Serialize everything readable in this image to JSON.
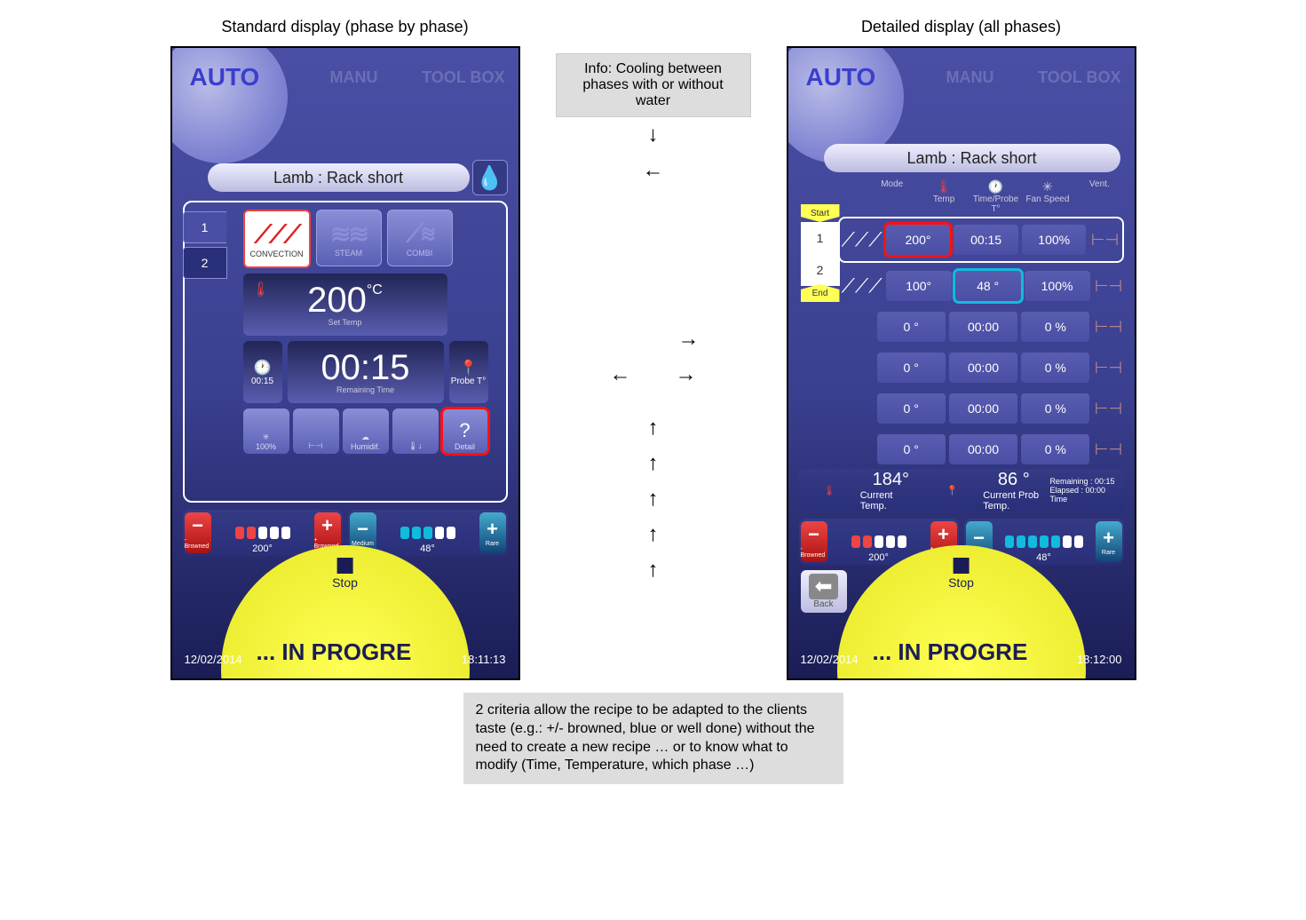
{
  "captions": {
    "standard": "Standard display (phase by phase)",
    "detailed": "Detailed display (all phases)"
  },
  "tabs": {
    "auto": "AUTO",
    "manu": "MANU",
    "toolbox": "TOOL BOX"
  },
  "recipe": "Lamb : Rack short",
  "standard": {
    "phase_tabs": [
      "1",
      "2"
    ],
    "modes": {
      "convection": "CONVECTION",
      "steam": "STEAM",
      "combi": "COMBI"
    },
    "set_temp_val": "200",
    "set_temp_unit": "°C",
    "set_temp_lbl": "Set Temp",
    "time_small": "00:15",
    "time_val": "00:15",
    "time_lbl": "Remaining Time",
    "probe_lbl": "Probe T°",
    "small_btns": {
      "fan": "100%",
      "vent": "",
      "humid": "Humidif.",
      "heat": "",
      "detail": "Detail"
    }
  },
  "detailed": {
    "start": "Start",
    "end": "End",
    "headers": {
      "mode": "Mode",
      "temp": "Temp",
      "time": "Time/Probe T°",
      "fan": "Fan Speed",
      "vent": "Vent."
    },
    "rows": [
      {
        "n": "1",
        "mode": "⟋⟋⟋",
        "temp": "200°",
        "time": "00:15",
        "fan": "100%",
        "hl_temp": "red"
      },
      {
        "n": "2",
        "mode": "⟋⟋⟋",
        "temp": "100°",
        "time": "48 °",
        "fan": "100%",
        "hl_time": "blue"
      },
      {
        "n": "",
        "mode": "",
        "temp": "0 °",
        "time": "00:00",
        "fan": "0 %"
      },
      {
        "n": "",
        "mode": "",
        "temp": "0 °",
        "time": "00:00",
        "fan": "0 %"
      },
      {
        "n": "",
        "mode": "",
        "temp": "0 °",
        "time": "00:00",
        "fan": "0 %"
      },
      {
        "n": "",
        "mode": "",
        "temp": "0 °",
        "time": "00:00",
        "fan": "0 %"
      }
    ],
    "cur_temp_v": "184°",
    "cur_temp_l": "Current Temp.",
    "cur_probe_v": "86  °",
    "cur_probe_l": "Current Prob Temp.",
    "remaining": "Remaining :  00:15",
    "elapsed": "Elapsed :     00:00",
    "timelbl": "Time"
  },
  "sliders": {
    "left_minus": "- Browned",
    "left_val": "200°",
    "left_plus": "+ Browned",
    "right_minus": "Medium",
    "right_val": "48°",
    "right_plus": "Rare"
  },
  "back": "Back",
  "stop": "Stop",
  "status": "... IN PROGRE",
  "std": {
    "date": "12/02/2014",
    "time": "18:11:13"
  },
  "det": {
    "date": "12/02/2014",
    "time": "18:12:00"
  },
  "callouts": {
    "info": "Info: Cooling between phases with or without water",
    "bottom": "2 criteria allow the recipe to be adapted to the clients taste  (e.g.: +/- browned, blue or well done) without the need to create a new recipe … or to know what to modify (Time, Temperature, which phase …)"
  }
}
